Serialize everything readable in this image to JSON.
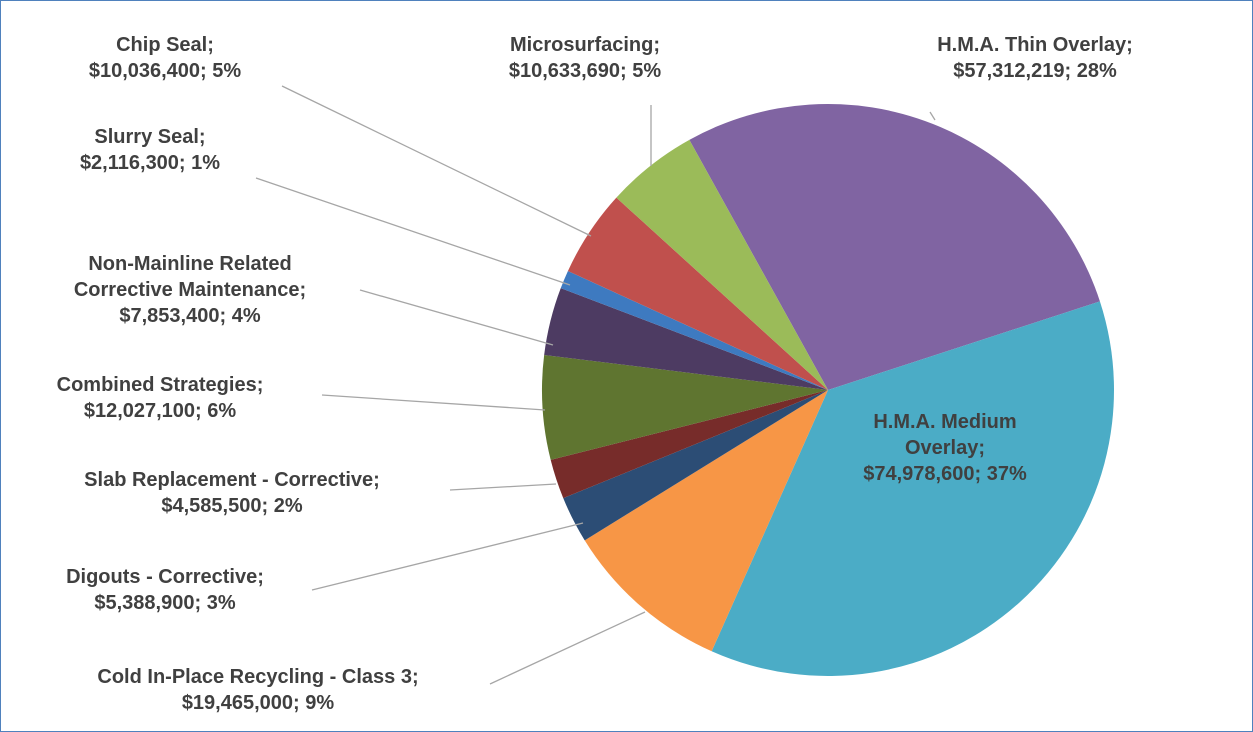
{
  "chart_data": {
    "type": "pie",
    "categories": [
      "H.M.A. Thin Overlay;",
      "H.M.A. Medium Overlay;",
      "Cold In-Place Recycling - Class 3;",
      "Digouts - Corrective;",
      "Slab Replacement - Corrective;",
      "Combined Strategies;",
      "Non-Mainline Related Corrective Maintenance;",
      "Slurry Seal;",
      "Chip Seal;",
      "Microsurfacing;"
    ],
    "values": [
      57312219,
      74978600,
      19465000,
      5388900,
      4585500,
      12027100,
      7853400,
      2116300,
      10036400,
      10633690
    ],
    "value_labels": [
      "$57,312,219;",
      "$74,978,600;",
      "$19,465,000;",
      "$5,388,900;",
      "$4,585,500;",
      "$12,027,100;",
      "$7,853,400;",
      "$2,116,300;",
      "$10,036,400;",
      "$10,633,690;"
    ],
    "percents": [
      28,
      37,
      9,
      3,
      2,
      6,
      4,
      1,
      5,
      5
    ],
    "percent_labels": [
      "28%",
      "37%",
      "9%",
      "3%",
      "2%",
      "6%",
      "4%",
      "1%",
      "5%",
      "5%"
    ],
    "colors": [
      "#8064a2",
      "#4bacc6",
      "#f79646",
      "#2c4d75",
      "#772c2a",
      "#5f7530",
      "#4d3b62",
      "#3e7ac0",
      "#c0504d",
      "#9bbb59"
    ]
  }
}
